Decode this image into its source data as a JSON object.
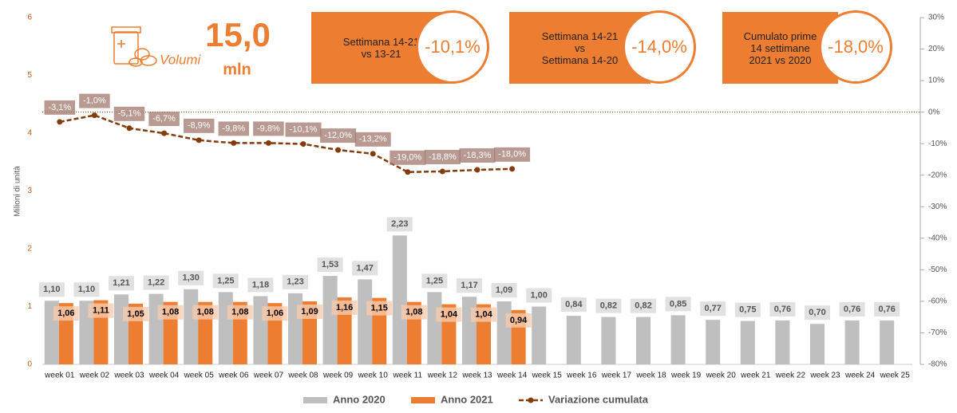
{
  "chart_data": {
    "type": "bar-line",
    "y_label": "Milioni di unità",
    "categories": [
      "week 01",
      "week 02",
      "week 03",
      "week 04",
      "week 05",
      "week 06",
      "week 07",
      "week 08",
      "week 09",
      "week 10",
      "week 11",
      "week 12",
      "week 13",
      "week 14",
      "week 15",
      "week 16",
      "week 17",
      "week 18",
      "week 19",
      "week 20",
      "week 21",
      "week 22",
      "week 23",
      "week 24",
      "week 25"
    ],
    "series": [
      {
        "name": "Anno 2020",
        "color": "#bfbfbf",
        "type": "bar",
        "values": [
          1.1,
          1.1,
          1.21,
          1.22,
          1.3,
          1.25,
          1.18,
          1.23,
          1.53,
          1.47,
          2.23,
          1.25,
          1.17,
          1.09,
          1.0,
          0.84,
          0.82,
          0.82,
          0.85,
          0.77,
          0.75,
          0.76,
          0.7,
          0.76,
          0.76
        ],
        "value_labels": [
          "1,10",
          "1,10",
          "1,21",
          "1,22",
          "1,30",
          "1,25",
          "1,18",
          "1,23",
          "1,53",
          "1,47",
          "2,23",
          "1,25",
          "1,17",
          "1,09",
          "1,00",
          "0,84",
          "0,82",
          "0,82",
          "0,85",
          "0,77",
          "0,75",
          "0,76",
          "0,70",
          "0,76",
          "0,76"
        ]
      },
      {
        "name": "Anno 2021",
        "color": "#ed7d31",
        "type": "bar",
        "values": [
          1.06,
          1.11,
          1.05,
          1.08,
          1.08,
          1.08,
          1.06,
          1.09,
          1.16,
          1.15,
          1.08,
          1.04,
          1.04,
          0.94,
          null,
          null,
          null,
          null,
          null,
          null,
          null,
          null,
          null,
          null,
          null
        ],
        "value_labels": [
          "1,06",
          "1,11",
          "1,05",
          "1,08",
          "1,08",
          "1,08",
          "1,06",
          "1,09",
          "1,16",
          "1,15",
          "1,08",
          "1,04",
          "1,04",
          "0,94",
          null,
          null,
          null,
          null,
          null,
          null,
          null,
          null,
          null,
          null,
          null
        ]
      },
      {
        "name": "Variazione cumulata",
        "color": "#843c0c",
        "type": "line",
        "axis": "y2",
        "values": [
          -3.1,
          -1.0,
          -5.1,
          -6.7,
          -8.9,
          -9.8,
          -9.8,
          -10.1,
          -12.0,
          -13.2,
          -19.0,
          -18.8,
          -18.3,
          -18.0,
          null,
          null,
          null,
          null,
          null,
          null,
          null,
          null,
          null,
          null,
          null
        ],
        "value_labels": [
          "-3,1%",
          "-1,0%",
          "-5,1%",
          "-6,7%",
          "-8,9%",
          "-9,8%",
          "-9,8%",
          "-10,1%",
          "-12,0%",
          "-13,2%",
          "-19,0%",
          "-18,8%",
          "-18,3%",
          "-18,0%",
          null,
          null,
          null,
          null,
          null,
          null,
          null,
          null,
          null,
          null,
          null
        ]
      }
    ],
    "ylim": [
      0,
      6
    ],
    "yticks": [
      0,
      1,
      2,
      3,
      4,
      5,
      6
    ],
    "y2lim": [
      -80,
      30
    ],
    "y2ticks": [
      {
        "value": -80,
        "label": "-80%"
      },
      {
        "value": -70,
        "label": "-70%"
      },
      {
        "value": -60,
        "label": "-60%"
      },
      {
        "value": -50,
        "label": "-50%"
      },
      {
        "value": -40,
        "label": "-40%"
      },
      {
        "value": -30,
        "label": "-30%"
      },
      {
        "value": -20,
        "label": "-20%"
      },
      {
        "value": -10,
        "label": "-10%"
      },
      {
        "value": 0,
        "label": "0%"
      },
      {
        "value": 10,
        "label": "10%"
      },
      {
        "value": 20,
        "label": "20%"
      },
      {
        "value": 30,
        "label": "30%"
      }
    ],
    "legend": "bottom"
  },
  "kpis": {
    "volume": {
      "label": "Volumi",
      "value": "15,0",
      "unit": "mln"
    },
    "boxes": [
      {
        "lines": [
          "Settimana 14-21",
          "vs 13-21"
        ],
        "value": "-10,1%"
      },
      {
        "lines": [
          "Settimana 14-21",
          "vs",
          "Settimana 14-20"
        ],
        "value": "-14,0%"
      },
      {
        "lines": [
          "Cumulato prime",
          "14 settimane",
          "2021 vs 2020"
        ],
        "value": "-18,0%"
      }
    ]
  }
}
